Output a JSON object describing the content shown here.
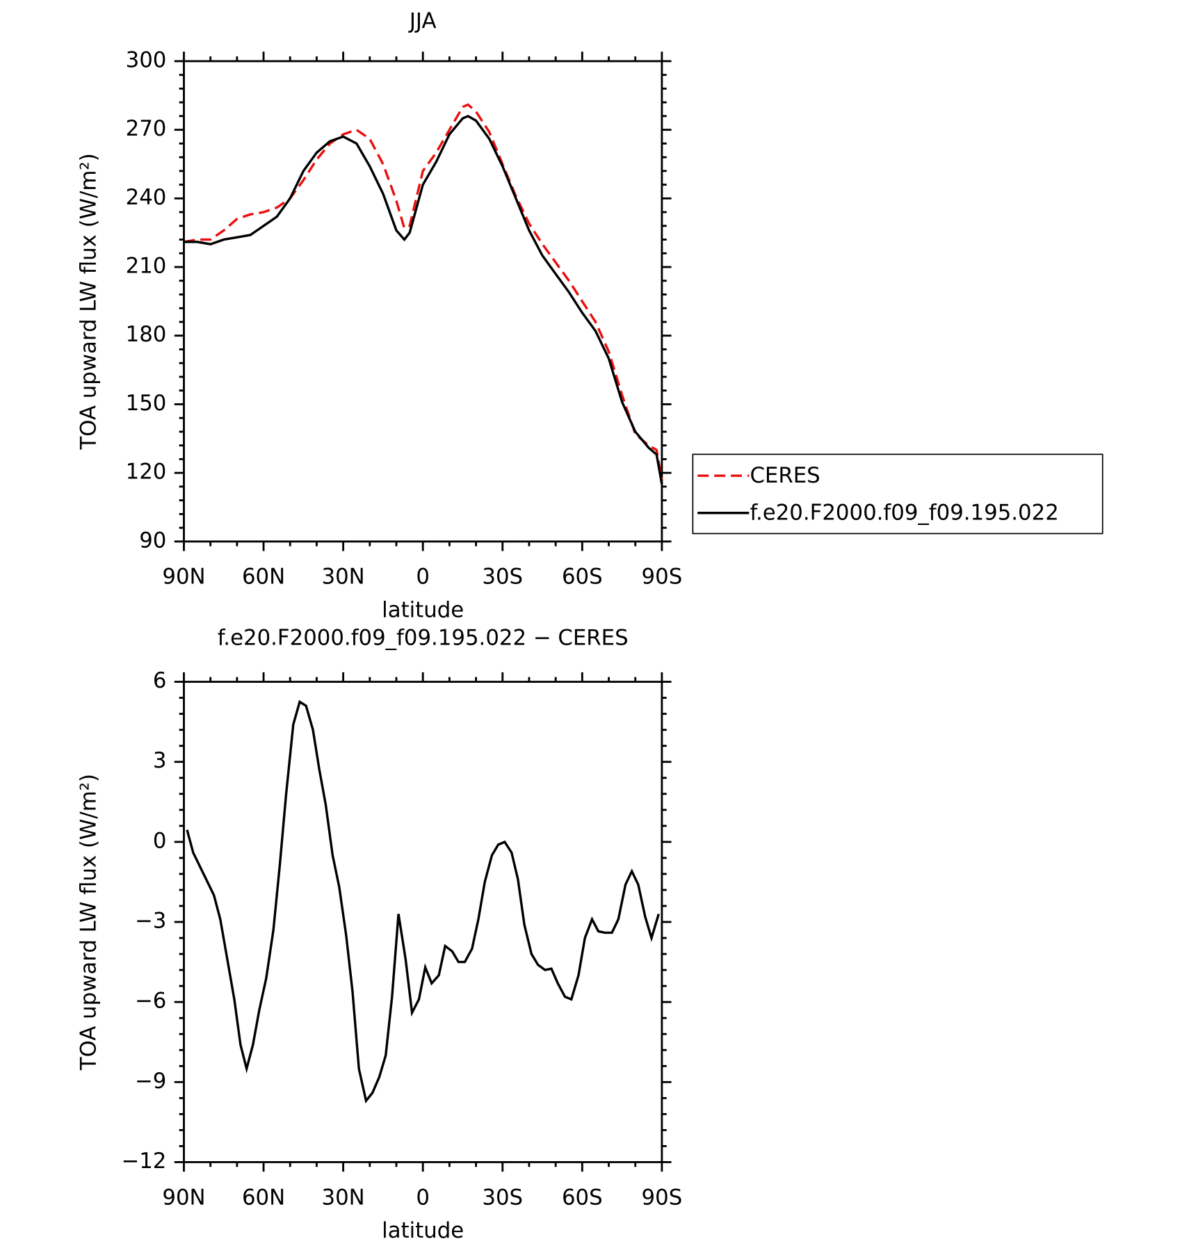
{
  "chart_data": [
    {
      "type": "line",
      "title": "JJA",
      "xlabel": "latitude",
      "ylabel": "TOA upward LW flux (W/m²)",
      "xlim": [
        90,
        -90
      ],
      "xticks": [
        {
          "value": 90,
          "label": "90N"
        },
        {
          "value": 60,
          "label": "60N"
        },
        {
          "value": 30,
          "label": "30N"
        },
        0,
        {
          "value": -30,
          "label": "30S"
        },
        {
          "value": -60,
          "label": "60S"
        },
        {
          "value": -90,
          "label": "90S"
        }
      ],
      "ylim": [
        90,
        300
      ],
      "yticks": [
        90,
        120,
        150,
        180,
        210,
        240,
        270,
        300
      ],
      "legend": "right",
      "grid": false,
      "x": [
        90,
        85,
        80,
        75,
        70,
        65,
        60,
        55,
        50,
        45,
        40,
        35,
        30,
        25,
        20,
        15,
        10,
        7,
        5,
        0,
        -5,
        -10,
        -15,
        -17,
        -20,
        -25,
        -30,
        -35,
        -40,
        -45,
        -50,
        -55,
        -60,
        -65,
        -70,
        -75,
        -80,
        -85,
        -88,
        -90
      ],
      "series": [
        {
          "name": "CERES",
          "color": "#e8100f",
          "dashed": true,
          "values": [
            221,
            222,
            222,
            226,
            231,
            233,
            234,
            236,
            240,
            248,
            257,
            264,
            268,
            270,
            266,
            255,
            239,
            227,
            228,
            252,
            260,
            270,
            280,
            281,
            278,
            269,
            255,
            241,
            229,
            220,
            212,
            204,
            195,
            186,
            173,
            154,
            137,
            132,
            130,
            117
          ]
        },
        {
          "name": "f.e20.F2000.f09_f09.195.022",
          "color": "#000000",
          "dashed": false,
          "values": [
            221,
            221,
            220,
            222,
            223,
            224,
            228,
            232,
            240,
            252,
            260,
            265,
            267,
            264,
            254,
            242,
            226,
            222,
            225,
            246,
            256,
            268,
            275,
            276,
            274,
            266,
            254,
            240,
            226,
            215,
            207,
            199,
            190,
            182,
            170,
            151,
            138,
            131,
            128,
            115
          ]
        }
      ]
    },
    {
      "type": "line",
      "title": "f.e20.F2000.f09_f09.195.022 − CERES",
      "xlabel": "latitude",
      "ylabel": "TOA upward LW flux (W/m²)",
      "xlim": [
        90,
        -90
      ],
      "xticks": [
        {
          "value": 90,
          "label": "90N"
        },
        {
          "value": 60,
          "label": "60N"
        },
        {
          "value": 30,
          "label": "30N"
        },
        0,
        {
          "value": -30,
          "label": "30S"
        },
        {
          "value": -60,
          "label": "60S"
        },
        {
          "value": -90,
          "label": "90S"
        }
      ],
      "ylim": [
        -12,
        6
      ],
      "yticks": [
        {
          "value": -12,
          "label": "−12"
        },
        {
          "value": -9,
          "label": "−9"
        },
        {
          "value": -6,
          "label": "−6"
        },
        {
          "value": -3,
          "label": "−3"
        },
        0,
        3,
        6
      ],
      "grid": false,
      "x": [
        88.8,
        86.5,
        78.7,
        76.3,
        71,
        68.7,
        66.4,
        64,
        61.6,
        59,
        56.3,
        53.9,
        51.5,
        48.8,
        46.4,
        44,
        41.4,
        39,
        36.6,
        34,
        31.5,
        28.9,
        26.5,
        24.1,
        21.4,
        19,
        16.4,
        14,
        11.6,
        9.2,
        6.5,
        4.1,
        1.5,
        -0.9,
        -3.3,
        -6,
        -8.4,
        -11,
        -13.4,
        -15.8,
        -18.5,
        -20.9,
        -23.3,
        -26,
        -28.4,
        -30.8,
        -33.4,
        -35.8,
        -38.2,
        -40.9,
        -43.3,
        -46,
        -48.4,
        -50.8,
        -53.5,
        -55.9,
        -58.6,
        -61,
        -63.7,
        -66.1,
        -68.5,
        -71.2,
        -73.6,
        -76.3,
        -78.7,
        -81.1,
        -83.7,
        -86.1,
        -88.8
      ],
      "series": [
        {
          "color": "#000000",
          "dashed": false,
          "values": [
            0.45,
            -0.4,
            -2,
            -2.9,
            -5.9,
            -7.6,
            -8.5,
            -7.6,
            -6.3,
            -5.1,
            -3.3,
            -0.9,
            1.8,
            4.4,
            5.25,
            5.1,
            4.2,
            2.7,
            1.4,
            -0.5,
            -1.7,
            -3.5,
            -5.6,
            -8.5,
            -9.7,
            -9.4,
            -8.8,
            -8,
            -5.8,
            -2.7,
            -4.4,
            -6.4,
            -5.9,
            -4.7,
            -5.3,
            -5,
            -3.9,
            -4.1,
            -4.5,
            -4.5,
            -4,
            -2.9,
            -1.5,
            -0.5,
            -0.1,
            0,
            -0.4,
            -1.4,
            -3.1,
            -4.2,
            -4.6,
            -4.8,
            -4.75,
            -5.3,
            -5.8,
            -5.9,
            -5,
            -3.6,
            -2.9,
            -3.35,
            -3.4,
            -3.4,
            -2.9,
            -1.6,
            -1.1,
            -1.6,
            -2.8,
            -3.6,
            -2.7
          ]
        }
      ]
    }
  ]
}
